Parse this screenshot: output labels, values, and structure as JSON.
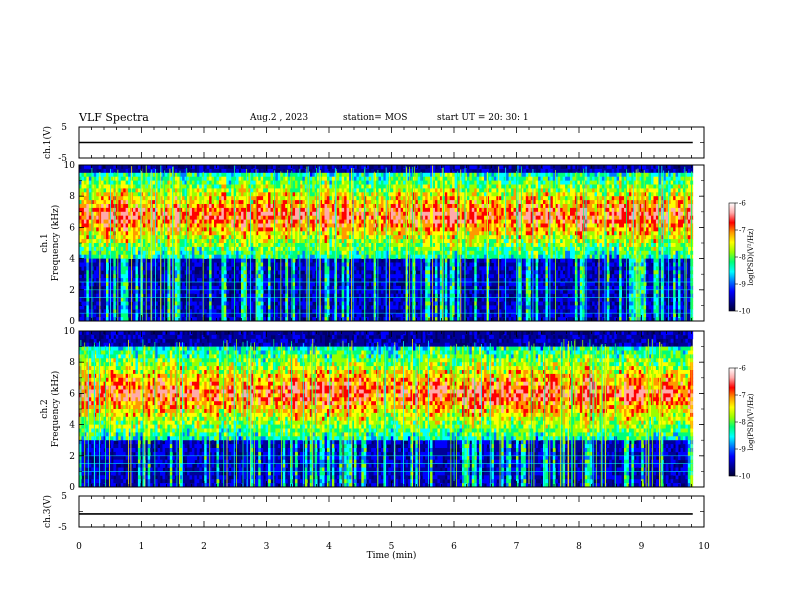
{
  "header": {
    "title": "VLF Spectra",
    "date": "Aug.2 , 2023",
    "station": "station= MOS",
    "start_ut": "start UT = 20: 30: 1"
  },
  "colors": {
    "background": "#000066",
    "colormap": [
      "#000033",
      "#000099",
      "#0000ff",
      "#0077ff",
      "#00ffff",
      "#00ff77",
      "#99ff00",
      "#ffff00",
      "#ff9900",
      "#ff0000",
      "#ffaaaa",
      "#ffffff"
    ]
  },
  "chart_data": [
    {
      "type": "line",
      "panel": "ch1-waveform",
      "ylabel": "ch.1(V)",
      "ylim": [
        -5,
        5
      ],
      "yticks": [
        5,
        -5
      ],
      "x": [
        0,
        9.82
      ],
      "series": [
        {
          "values": [
            0,
            0
          ]
        }
      ]
    },
    {
      "type": "heatmap",
      "panel": "ch1-spectrogram",
      "ylabel_line1": "ch.1",
      "ylabel_line2": "Frequency (kHz)",
      "ylim": [
        0,
        10
      ],
      "yticks": [
        0,
        2,
        4,
        6,
        8,
        10
      ],
      "xlim": [
        0,
        10
      ],
      "data_end_min": 9.82,
      "colorbar": {
        "label": "log(PSD)(V²/Hz)",
        "range": [
          -10,
          -6
        ],
        "ticks": [
          "-6",
          "-7",
          "-8",
          "-9",
          "-10"
        ]
      },
      "emission_band_khz": [
        4,
        9.5
      ],
      "lines_khz": [
        0.5,
        1.5,
        2.0,
        2.5
      ]
    },
    {
      "type": "heatmap",
      "panel": "ch2-spectrogram",
      "ylabel_line1": "ch.2",
      "ylabel_line2": "Frequency (kHz)",
      "ylim": [
        0,
        10
      ],
      "yticks": [
        0,
        2,
        4,
        6,
        8,
        10
      ],
      "xlim": [
        0,
        10
      ],
      "data_end_min": 9.82,
      "colorbar": {
        "label": "log(PSD)(V²/Hz)",
        "range": [
          -10,
          -6
        ],
        "ticks": [
          "-6",
          "-7",
          "-8",
          "-9",
          "-10"
        ]
      },
      "emission_band_khz": [
        3,
        9
      ],
      "lines_khz": [
        1.0,
        1.5,
        2.0
      ]
    },
    {
      "type": "line",
      "panel": "ch3-waveform",
      "ylabel": "ch.3(V)",
      "ylim": [
        -5,
        5
      ],
      "yticks": [
        5,
        -5
      ],
      "x": [
        0,
        9.82
      ],
      "series": [
        {
          "values": [
            -0.8,
            -0.8
          ]
        }
      ]
    }
  ],
  "xaxis": {
    "label": "Time (min)",
    "range": [
      0,
      10
    ],
    "ticks": [
      "0",
      "1",
      "2",
      "3",
      "4",
      "5",
      "6",
      "7",
      "8",
      "9",
      "10"
    ]
  }
}
